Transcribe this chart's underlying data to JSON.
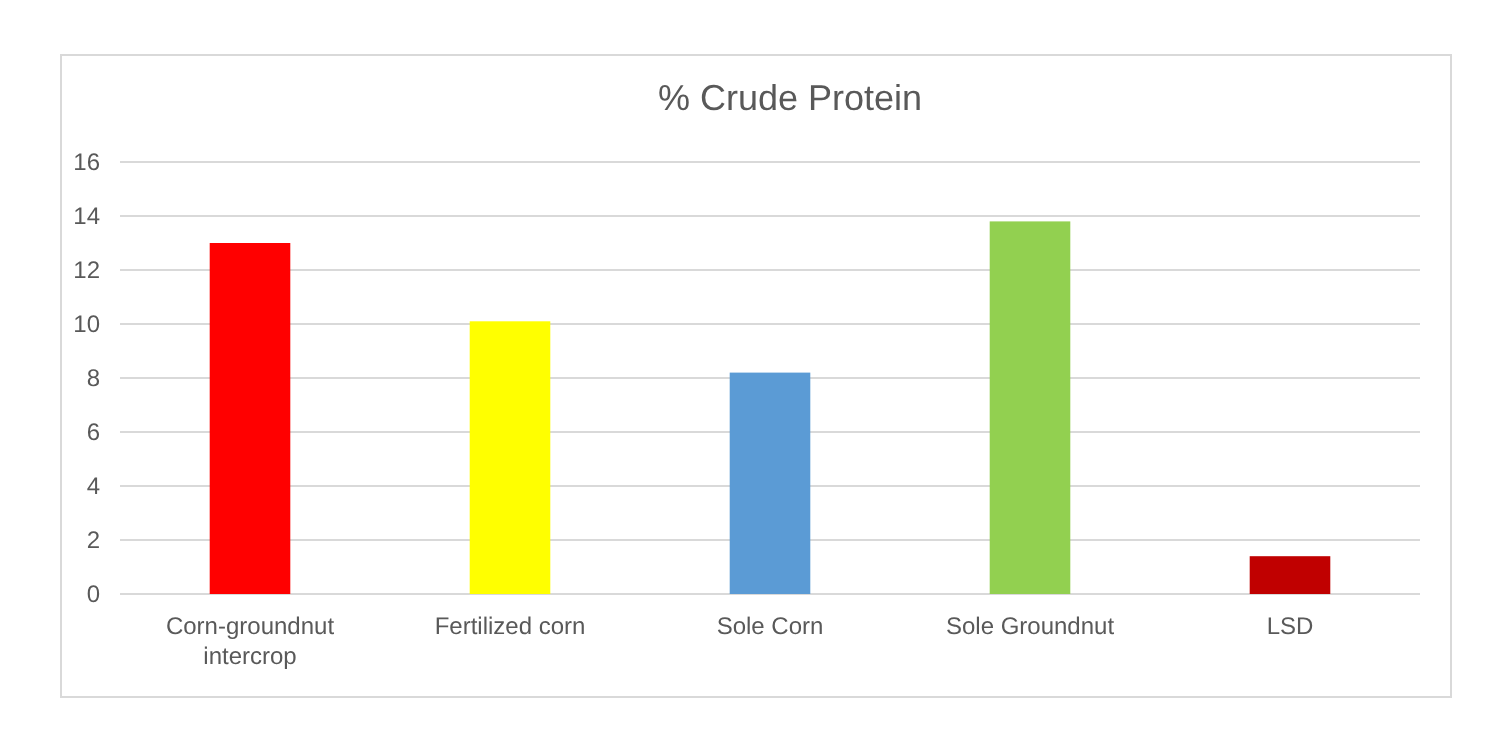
{
  "chart_data": {
    "type": "bar",
    "title": "% Crude Protein",
    "categories": [
      "Corn-groundnut intercrop",
      "Fertilized corn",
      "Sole Corn",
      "Sole Groundnut",
      "LSD"
    ],
    "values": [
      13,
      10.1,
      8.2,
      13.8,
      1.4
    ],
    "colors": [
      "#ff0000",
      "#ffff00",
      "#5b9bd5",
      "#92d050",
      "#c00000"
    ],
    "ylim": [
      0,
      16
    ],
    "yticks": [
      0,
      2,
      4,
      6,
      8,
      10,
      12,
      14,
      16
    ],
    "grid": "y"
  }
}
